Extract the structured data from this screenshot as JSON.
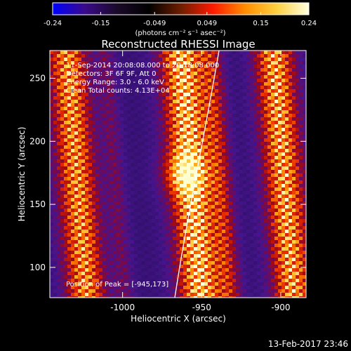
{
  "colorbar": {
    "ticks": [
      "-0.24",
      "-0.15",
      "-0.049",
      "0.049",
      "0.15",
      "0.24"
    ],
    "units": "(photons cm⁻² s⁻¹ asec⁻²)",
    "range": [
      -0.24,
      0.24
    ],
    "colors": [
      "#0000ff",
      "#3a0a8c",
      "#1a0a2a",
      "#000000",
      "#6e1e00",
      "#ff1a00",
      "#ff8c00",
      "#ffd040",
      "#ffffe0"
    ]
  },
  "image": {
    "title": "Reconstructed RHESSI Image",
    "annotations": [
      "11-Sep-2014 20:08:08.000 to 20:18:08.000",
      "Detectors: 3F 6F 9F, Att 0",
      "Energy Range: 3.0 - 6.0 keV",
      "Clean      Total counts: 4.13E+04"
    ],
    "peak_label": "Position of Peak = [-945,173]",
    "xlabel": "Heliocentric X (arcsec)",
    "ylabel": "Heliocentric Y (arcsec)",
    "x_ticks": [
      "-1000",
      "-950",
      "-900"
    ],
    "y_ticks": [
      "100",
      "150",
      "200",
      "250"
    ],
    "x_tick_values": [
      -1000,
      -950,
      -900
    ],
    "y_tick_values": [
      100,
      150,
      200,
      250
    ],
    "xlim": [
      -1046,
      -884
    ],
    "ylim": [
      76,
      272
    ],
    "peak": [
      -945,
      173
    ]
  },
  "footer": {
    "date": "13-Feb-2017 23:46"
  }
}
